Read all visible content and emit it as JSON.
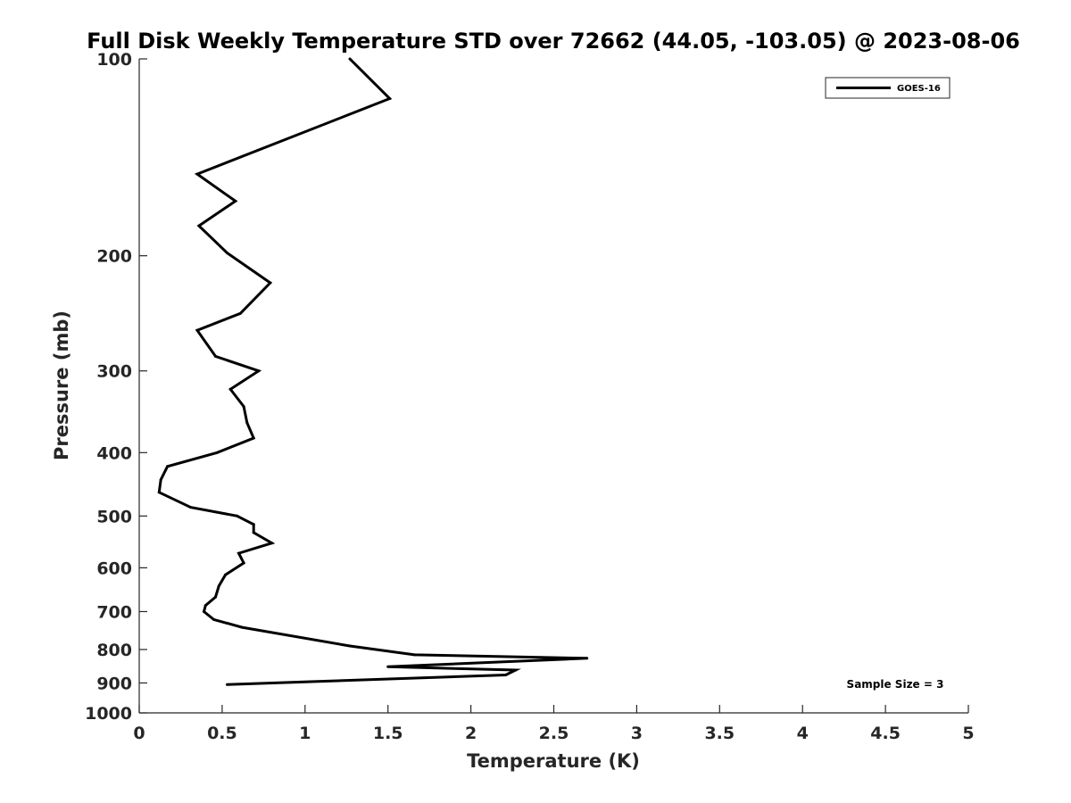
{
  "chart_data": {
    "type": "line",
    "title": "Full Disk Weekly Temperature STD over 72662 (44.05, -103.05) @ 2023-08-06",
    "xlabel": "Temperature (K)",
    "ylabel": "Pressure (mb)",
    "xlim": [
      0,
      5
    ],
    "ylim": [
      1000,
      100
    ],
    "y_scale": "log",
    "y_reversed": true,
    "grid": false,
    "legend_position": "top-right",
    "x_ticks": [
      0,
      0.5,
      1,
      1.5,
      2,
      2.5,
      3,
      3.5,
      4,
      4.5,
      5
    ],
    "x_tick_labels": [
      "0",
      "0.5",
      "1",
      "1.5",
      "2",
      "2.5",
      "3",
      "3.5",
      "4",
      "4.5",
      "5"
    ],
    "y_ticks": [
      100,
      200,
      300,
      400,
      500,
      600,
      700,
      800,
      900,
      1000
    ],
    "y_tick_labels": [
      "100",
      "200",
      "300",
      "400",
      "500",
      "600",
      "700",
      "800",
      "900",
      "1000"
    ],
    "series": [
      {
        "name": "GOES-16",
        "color": "#000000",
        "x": [
          1.27,
          1.51,
          0.35,
          0.58,
          0.36,
          0.53,
          0.79,
          0.61,
          0.35,
          0.46,
          0.72,
          0.55,
          0.63,
          0.65,
          0.69,
          0.47,
          0.17,
          0.13,
          0.12,
          0.31,
          0.59,
          0.69,
          0.69,
          0.8,
          0.6,
          0.63,
          0.52,
          0.48,
          0.46,
          0.4,
          0.39,
          0.45,
          0.62,
          1.27,
          1.66,
          2.7,
          1.5,
          2.27,
          2.21,
          0.53
        ],
        "y": [
          100,
          115,
          150,
          165,
          180,
          198,
          220,
          245,
          260,
          285,
          300,
          320,
          340,
          360,
          380,
          400,
          420,
          440,
          460,
          485,
          500,
          515,
          530,
          550,
          570,
          590,
          615,
          640,
          665,
          685,
          700,
          720,
          740,
          790,
          815,
          825,
          850,
          860,
          875,
          905
        ]
      }
    ]
  },
  "annotation": "Sample Size = 3"
}
